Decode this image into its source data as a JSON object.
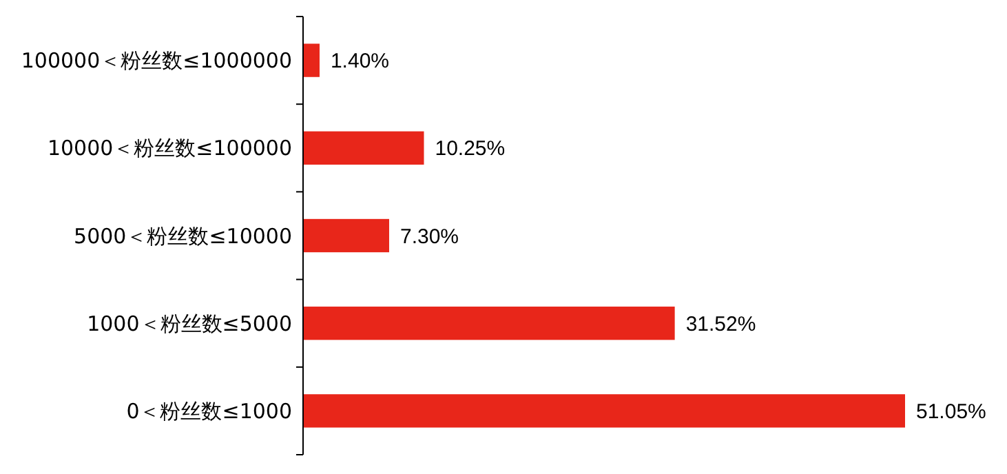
{
  "chart_data": {
    "type": "bar",
    "orientation": "horizontal",
    "categories": [
      "100000＜粉丝数≤1000000",
      "10000＜粉丝数≤100000",
      "5000＜粉丝数≤10000",
      "1000＜粉丝数≤5000",
      "0＜粉丝数≤1000"
    ],
    "values": [
      1.4,
      10.25,
      7.3,
      31.52,
      51.05
    ],
    "value_labels": [
      "1.40%",
      "10.25%",
      "7.30%",
      "31.52%",
      "51.05%"
    ],
    "color": "#e8261a"
  }
}
